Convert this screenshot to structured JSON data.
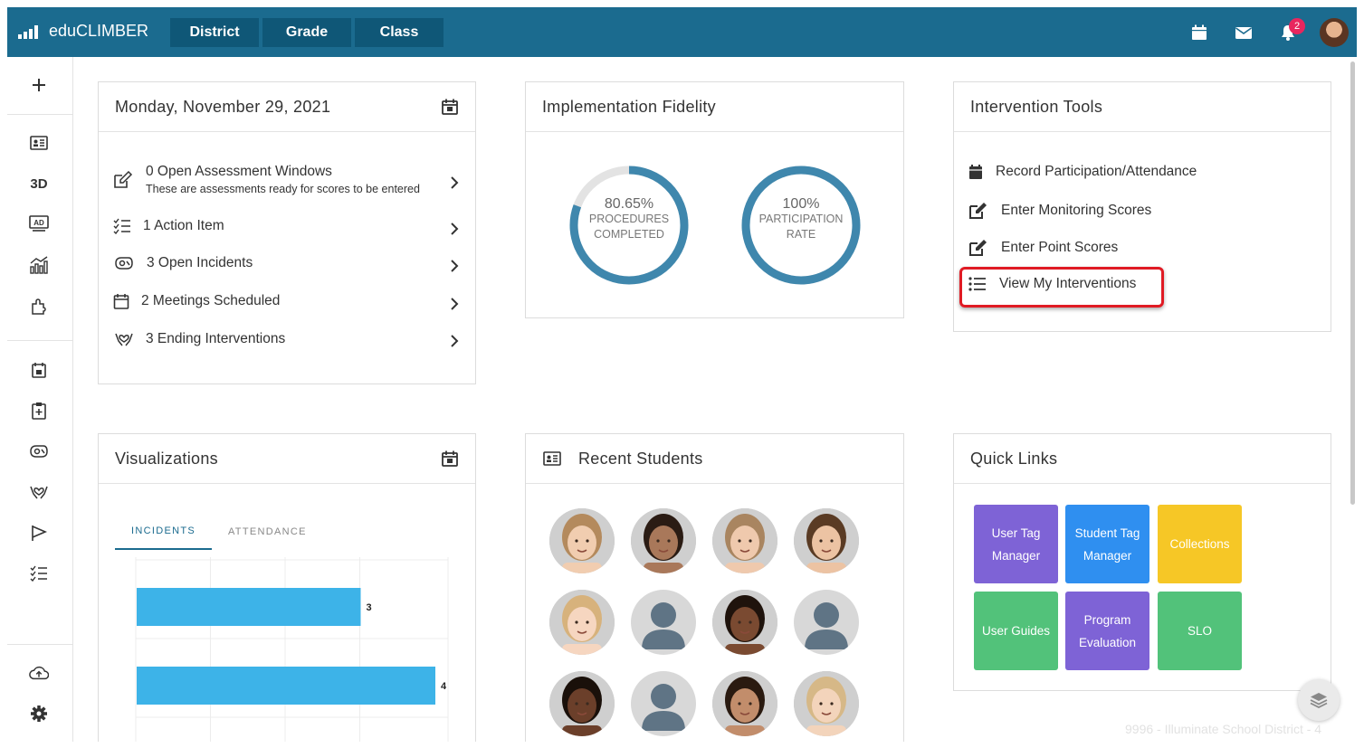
{
  "app": {
    "name": "eduCLIMBER",
    "accent": "#1b6b8f",
    "tab_bg": "#0f5777"
  },
  "nav_tabs": [
    "District",
    "Grade",
    "Class"
  ],
  "top_icons": [
    "calendar-icon",
    "mail-icon",
    "bell-icon"
  ],
  "notifications": {
    "count": "2"
  },
  "sidebar": {
    "items": [
      "plus-icon",
      "student-card-icon",
      "3D",
      "ad-icon",
      "chart-icon",
      "puzzle-icon",
      "calendar-icon",
      "clipboard-icon",
      "incident-icon",
      "heart-hands-icon",
      "flag-icon",
      "checklist-icon",
      "cloud-upload-icon",
      "gear-icon"
    ]
  },
  "date_card": {
    "title": "Monday, November 29, 2021",
    "items": [
      {
        "icon": "edit-icon",
        "label": "0 Open Assessment Windows",
        "sub": "These are assessments ready for scores to be entered"
      },
      {
        "icon": "checklist-icon",
        "label": "1 Action Item",
        "sub": ""
      },
      {
        "icon": "incident-icon",
        "label": "3 Open Incidents",
        "sub": ""
      },
      {
        "icon": "calendar-icon",
        "label": "2 Meetings Scheduled",
        "sub": ""
      },
      {
        "icon": "heart-hands-icon",
        "label": "3 Ending Interventions",
        "sub": ""
      }
    ]
  },
  "fidelity": {
    "title": "Implementation Fidelity",
    "rings": [
      {
        "value": "80.65%",
        "line1": "PROCEDURES",
        "line2": "COMPLETED",
        "fraction": 0.8065
      },
      {
        "value": "100%",
        "line1": "PARTICIPATION",
        "line2": "RATE",
        "fraction": 1.0
      }
    ],
    "ring_color": "#3f87ad",
    "ring_track": "#e3e3e3"
  },
  "tools": {
    "title": "Intervention Tools",
    "items": [
      {
        "icon": "calendar-icon",
        "label": "Record Participation/Attendance"
      },
      {
        "icon": "edit-icon",
        "label": "Enter Monitoring Scores"
      },
      {
        "icon": "edit-icon",
        "label": "Enter Point Scores"
      },
      {
        "icon": "list-icon",
        "label": "View My Interventions"
      }
    ],
    "highlight_color": "#e01b24"
  },
  "visualizations": {
    "title": "Visualizations",
    "tabs": [
      "INCIDENTS",
      "ATTENDANCE"
    ],
    "active_tab": "INCIDENTS"
  },
  "chart_data": {
    "type": "bar",
    "orientation": "horizontal",
    "categories": [
      "",
      ""
    ],
    "values": [
      3,
      4
    ],
    "xlim": [
      0,
      4
    ],
    "title": "",
    "grid": true,
    "bar_color": "#3db3e8",
    "data_labels": [
      "3",
      "4"
    ]
  },
  "recent_students": {
    "title": "Recent Students",
    "students": [
      {
        "kind": "photo",
        "skin": "#f1cdb0",
        "hair": "#b48a5d"
      },
      {
        "kind": "photo",
        "skin": "#a9785a",
        "hair": "#2b1c14"
      },
      {
        "kind": "photo",
        "skin": "#efc9ad",
        "hair": "#a98560"
      },
      {
        "kind": "photo",
        "skin": "#ecc3a3",
        "hair": "#5a3b24"
      },
      {
        "kind": "photo",
        "skin": "#f6d6c0",
        "hair": "#d7b27c"
      },
      {
        "kind": "placeholder"
      },
      {
        "kind": "photo",
        "skin": "#7a4a31",
        "hair": "#1f130c"
      },
      {
        "kind": "placeholder"
      },
      {
        "kind": "photo",
        "skin": "#6b3f2a",
        "hair": "#1a100a"
      },
      {
        "kind": "placeholder"
      },
      {
        "kind": "photo",
        "skin": "#c28d6b",
        "hair": "#2a1a10"
      },
      {
        "kind": "photo",
        "skin": "#f3d4bb",
        "hair": "#d6b887"
      }
    ]
  },
  "quick_links": {
    "title": "Quick Links",
    "items": [
      {
        "label": "User Tag Manager",
        "color": "#7e63d6"
      },
      {
        "label": "Student Tag Manager",
        "color": "#2f8ff0"
      },
      {
        "label": "Collections",
        "color": "#f6c726"
      },
      {
        "label": "User Guides",
        "color": "#52c27a"
      },
      {
        "label": "Program Evaluation",
        "color": "#7e63d6"
      },
      {
        "label": "SLO",
        "color": "#52c27a"
      }
    ]
  },
  "footer": {
    "text": "9996 - Illuminate School District - 4"
  }
}
